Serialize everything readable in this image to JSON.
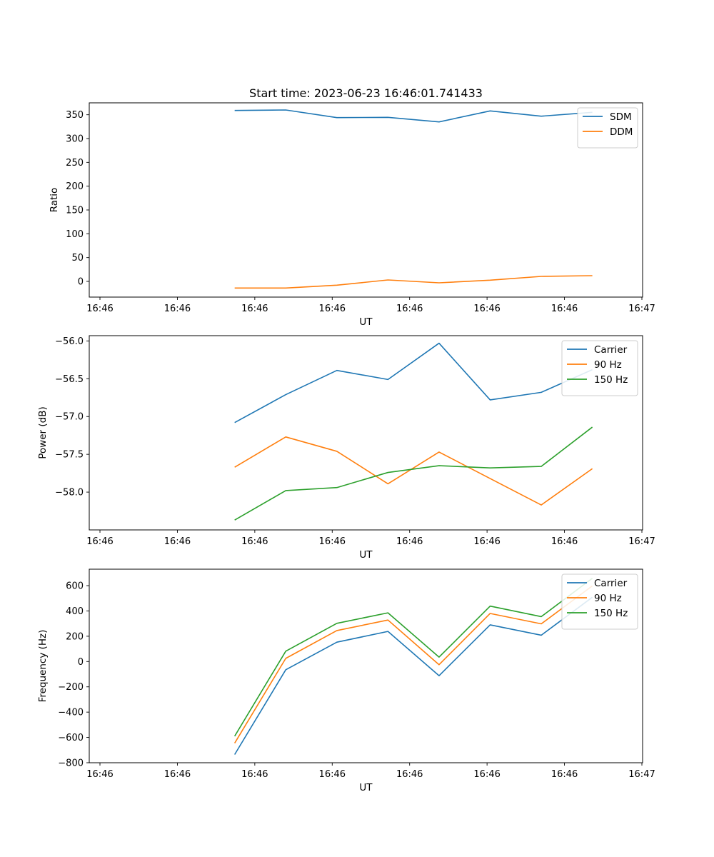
{
  "title": "Start time: 2023-06-23 16:46:01.741433",
  "chart_data": [
    {
      "type": "line",
      "title": "Start time: 2023-06-23 16:46:01.741433",
      "xlabel": "UT",
      "ylabel": "Ratio",
      "x": [
        "16:46:01.74",
        "16:46:02.40",
        "16:46:03.06",
        "16:46:03.72",
        "16:46:04.38",
        "16:46:05.04",
        "16:46:05.70",
        "16:46:06.36"
      ],
      "xtick_labels": [
        "16:46",
        "16:46",
        "16:46",
        "16:46",
        "16:46",
        "16:46",
        "16:46",
        "16:47"
      ],
      "ylim": [
        -33,
        375
      ],
      "yticks": [
        0,
        50,
        100,
        150,
        200,
        250,
        300,
        350
      ],
      "ytick_labels": [
        "0",
        "50",
        "100",
        "150",
        "200",
        "250",
        "300",
        "350"
      ],
      "legend_position": "top-right",
      "grid": false,
      "series": [
        {
          "name": "SDM",
          "color": "#1f77b4",
          "values": [
            359,
            360,
            344,
            344.5,
            335,
            358,
            347,
            355
          ]
        },
        {
          "name": "DDM",
          "color": "#ff7f0e",
          "values": [
            -14,
            -14,
            -8,
            3,
            -3,
            2.5,
            10.5,
            12
          ]
        }
      ]
    },
    {
      "type": "line",
      "xlabel": "UT",
      "ylabel": "Power (dB)",
      "x": [
        "16:46:01.74",
        "16:46:02.40",
        "16:46:03.06",
        "16:46:03.72",
        "16:46:04.38",
        "16:46:05.04",
        "16:46:05.70",
        "16:46:06.36"
      ],
      "xtick_labels": [
        "16:46",
        "16:46",
        "16:46",
        "16:46",
        "16:46",
        "16:46",
        "16:46",
        "16:47"
      ],
      "ylim": [
        -58.5,
        -55.93
      ],
      "yticks": [
        -58.0,
        -57.5,
        -57.0,
        -56.5,
        -56.0
      ],
      "ytick_labels": [
        "−58.0",
        "−57.5",
        "−57.0",
        "−56.5",
        "−56.0"
      ],
      "legend_position": "top-right",
      "grid": false,
      "series": [
        {
          "name": "Carrier",
          "color": "#1f77b4",
          "values": [
            -57.08,
            -56.71,
            -56.39,
            -56.51,
            -56.03,
            -56.78,
            -56.68,
            -56.38
          ]
        },
        {
          "name": "90 Hz",
          "color": "#ff7f0e",
          "values": [
            -57.67,
            -57.27,
            -57.46,
            -57.89,
            -57.47,
            -57.82,
            -58.17,
            -57.69
          ]
        },
        {
          "name": "150 Hz",
          "color": "#2ca02c",
          "values": [
            -58.37,
            -57.98,
            -57.94,
            -57.74,
            -57.65,
            -57.68,
            -57.66,
            -57.14
          ]
        }
      ]
    },
    {
      "type": "line",
      "xlabel": "UT",
      "ylabel": "Frequency (Hz)",
      "x": [
        "16:46:01.74",
        "16:46:02.40",
        "16:46:03.06",
        "16:46:03.72",
        "16:46:04.38",
        "16:46:05.04",
        "16:46:05.70",
        "16:46:06.36"
      ],
      "xtick_labels": [
        "16:46",
        "16:46",
        "16:46",
        "16:46",
        "16:46",
        "16:46",
        "16:46",
        "16:47"
      ],
      "ylim": [
        -800,
        730
      ],
      "yticks": [
        -800,
        -600,
        -400,
        -200,
        0,
        200,
        400,
        600
      ],
      "ytick_labels": [
        "−800",
        "−600",
        "−400",
        "−200",
        "0",
        "200",
        "400",
        "600"
      ],
      "legend_position": "top-right",
      "grid": false,
      "series": [
        {
          "name": "Carrier",
          "color": "#1f77b4",
          "values": [
            -735,
            -65,
            153,
            238,
            -112,
            290,
            208,
            508
          ]
        },
        {
          "name": "90 Hz",
          "color": "#ff7f0e",
          "values": [
            -645,
            25,
            245,
            328,
            -25,
            380,
            298,
            598
          ]
        },
        {
          "name": "150 Hz",
          "color": "#2ca02c",
          "values": [
            -590,
            82,
            302,
            385,
            35,
            438,
            355,
            658
          ]
        }
      ]
    }
  ]
}
